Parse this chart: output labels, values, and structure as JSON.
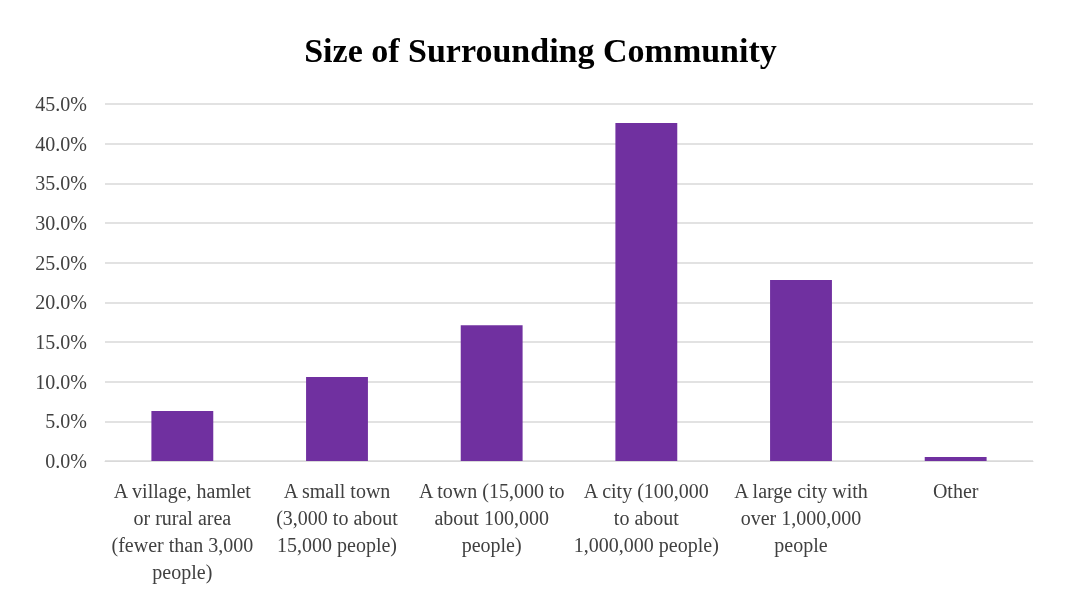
{
  "chart_data": {
    "type": "bar",
    "title": "Size of Surrounding Community",
    "categories": [
      "A village, hamlet or rural area (fewer than 3,000 people)",
      "A small town (3,000 to about 15,000 people)",
      "A town (15,000 to about 100,000 people)",
      "A city (100,000 to about 1,000,000 people)",
      "A large city with over 1,000,000 people",
      "Other"
    ],
    "values": [
      6.3,
      10.6,
      17.1,
      42.6,
      22.8,
      0.5
    ],
    "color": "#7030a0",
    "ylim": [
      0,
      45
    ],
    "yticks": [
      {
        "value": 0,
        "label": "0.0%"
      },
      {
        "value": 5,
        "label": "5.0%"
      },
      {
        "value": 10,
        "label": "10.0%"
      },
      {
        "value": 15,
        "label": "15.0%"
      },
      {
        "value": 20,
        "label": "20.0%"
      },
      {
        "value": 25,
        "label": "25.0%"
      },
      {
        "value": 30,
        "label": "30.0%"
      },
      {
        "value": 35,
        "label": "35.0%"
      },
      {
        "value": 40,
        "label": "40.0%"
      },
      {
        "value": 45,
        "label": "45.0%"
      }
    ],
    "grid": "y"
  }
}
